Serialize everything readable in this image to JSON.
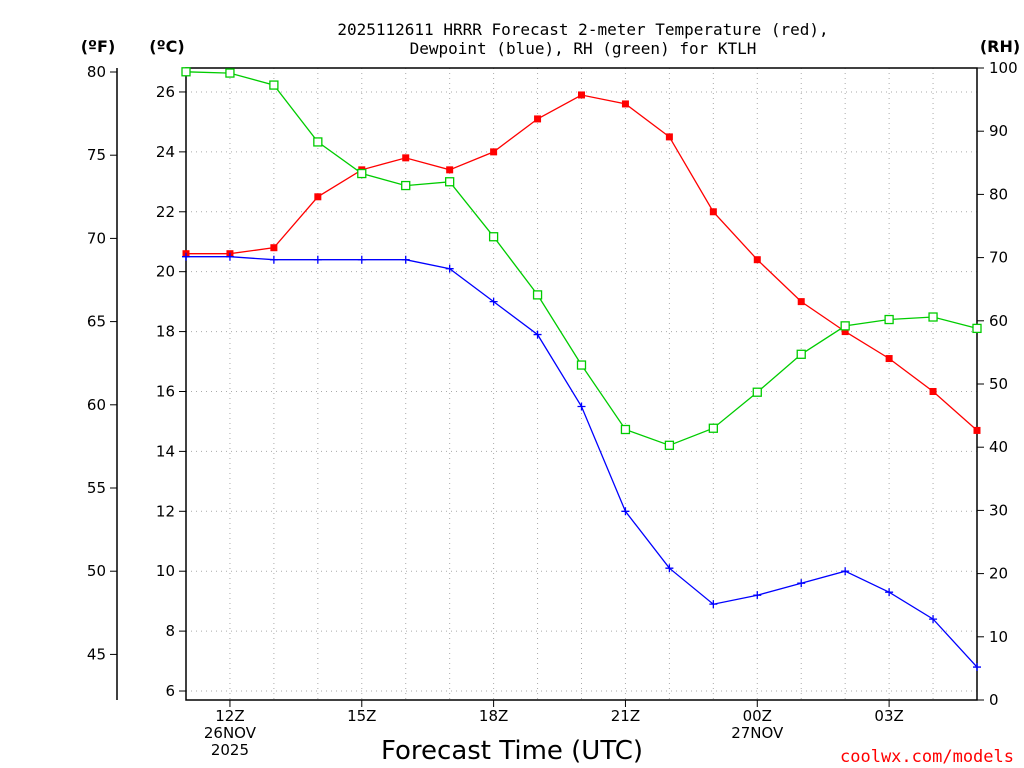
{
  "chart_data": {
    "type": "line",
    "title": [
      "2025112611 HRRR Forecast 2-meter Temperature (red),",
      "Dewpoint (blue), RH (green) for KTLH"
    ],
    "xlabel": "Forecast Time (UTC)",
    "credit": "coolwx.com/models",
    "unit_labels": {
      "fahrenheit": "(ºF)",
      "celsius": "(ºC)",
      "rh": "(RH)"
    },
    "x_range": [
      0,
      18
    ],
    "x_ticks": [
      {
        "x": 1,
        "lines": [
          "12Z",
          "26NOV",
          "2025"
        ]
      },
      {
        "x": 4,
        "lines": [
          "15Z"
        ]
      },
      {
        "x": 7,
        "lines": [
          "18Z"
        ]
      },
      {
        "x": 10,
        "lines": [
          "21Z"
        ]
      },
      {
        "x": 13,
        "lines": [
          "00Z",
          "27NOV"
        ]
      },
      {
        "x": 16,
        "lines": [
          "03Z"
        ]
      }
    ],
    "celsius_axis": {
      "range": [
        5.7,
        26.8
      ],
      "ticks": [
        6,
        8,
        10,
        12,
        14,
        16,
        18,
        20,
        22,
        24,
        26
      ]
    },
    "fahrenheit_axis": {
      "ticks": [
        45,
        50,
        55,
        60,
        65,
        70,
        75,
        80
      ]
    },
    "rh_axis": {
      "range": [
        0,
        100
      ],
      "ticks": [
        0,
        10,
        20,
        30,
        40,
        50,
        60,
        70,
        80,
        90,
        100
      ]
    },
    "grid": true,
    "series": [
      {
        "name": "Temperature",
        "unit": "°C",
        "axis": "celsius",
        "color": "#ff0000",
        "marker": "filled-square",
        "x": [
          0,
          1,
          2,
          3,
          4,
          5,
          6,
          7,
          8,
          9,
          10,
          11,
          12,
          13,
          14,
          15,
          16,
          17,
          18
        ],
        "values": [
          20.6,
          20.6,
          20.8,
          22.5,
          23.4,
          23.8,
          23.4,
          24.0,
          25.1,
          25.9,
          25.6,
          24.5,
          22.0,
          20.4,
          19.0,
          18.0,
          17.1,
          16.0,
          14.7
        ]
      },
      {
        "name": "Dewpoint",
        "unit": "°C",
        "axis": "celsius",
        "color": "#0000ff",
        "marker": "plus",
        "x": [
          0,
          1,
          2,
          3,
          4,
          5,
          6,
          7,
          8,
          9,
          10,
          11,
          12,
          13,
          14,
          15,
          16,
          17,
          18
        ],
        "values": [
          20.5,
          20.5,
          20.4,
          20.4,
          20.4,
          20.4,
          20.1,
          19.0,
          17.9,
          15.5,
          12.0,
          10.1,
          8.9,
          9.2,
          9.6,
          10.0,
          9.3,
          8.4,
          6.8
        ]
      },
      {
        "name": "Relative Humidity",
        "unit": "%",
        "axis": "rh",
        "color": "#00cc00",
        "marker": "open-square",
        "x": [
          0,
          1,
          2,
          3,
          4,
          5,
          6,
          7,
          8,
          9,
          10,
          11,
          12,
          13,
          14,
          15,
          16,
          17,
          18
        ],
        "values": [
          99.4,
          99.2,
          97.3,
          88.3,
          83.3,
          81.4,
          82.0,
          73.3,
          64.1,
          53.0,
          42.8,
          40.3,
          43.0,
          48.7,
          54.7,
          59.2,
          60.2,
          60.6,
          58.8
        ]
      }
    ]
  }
}
